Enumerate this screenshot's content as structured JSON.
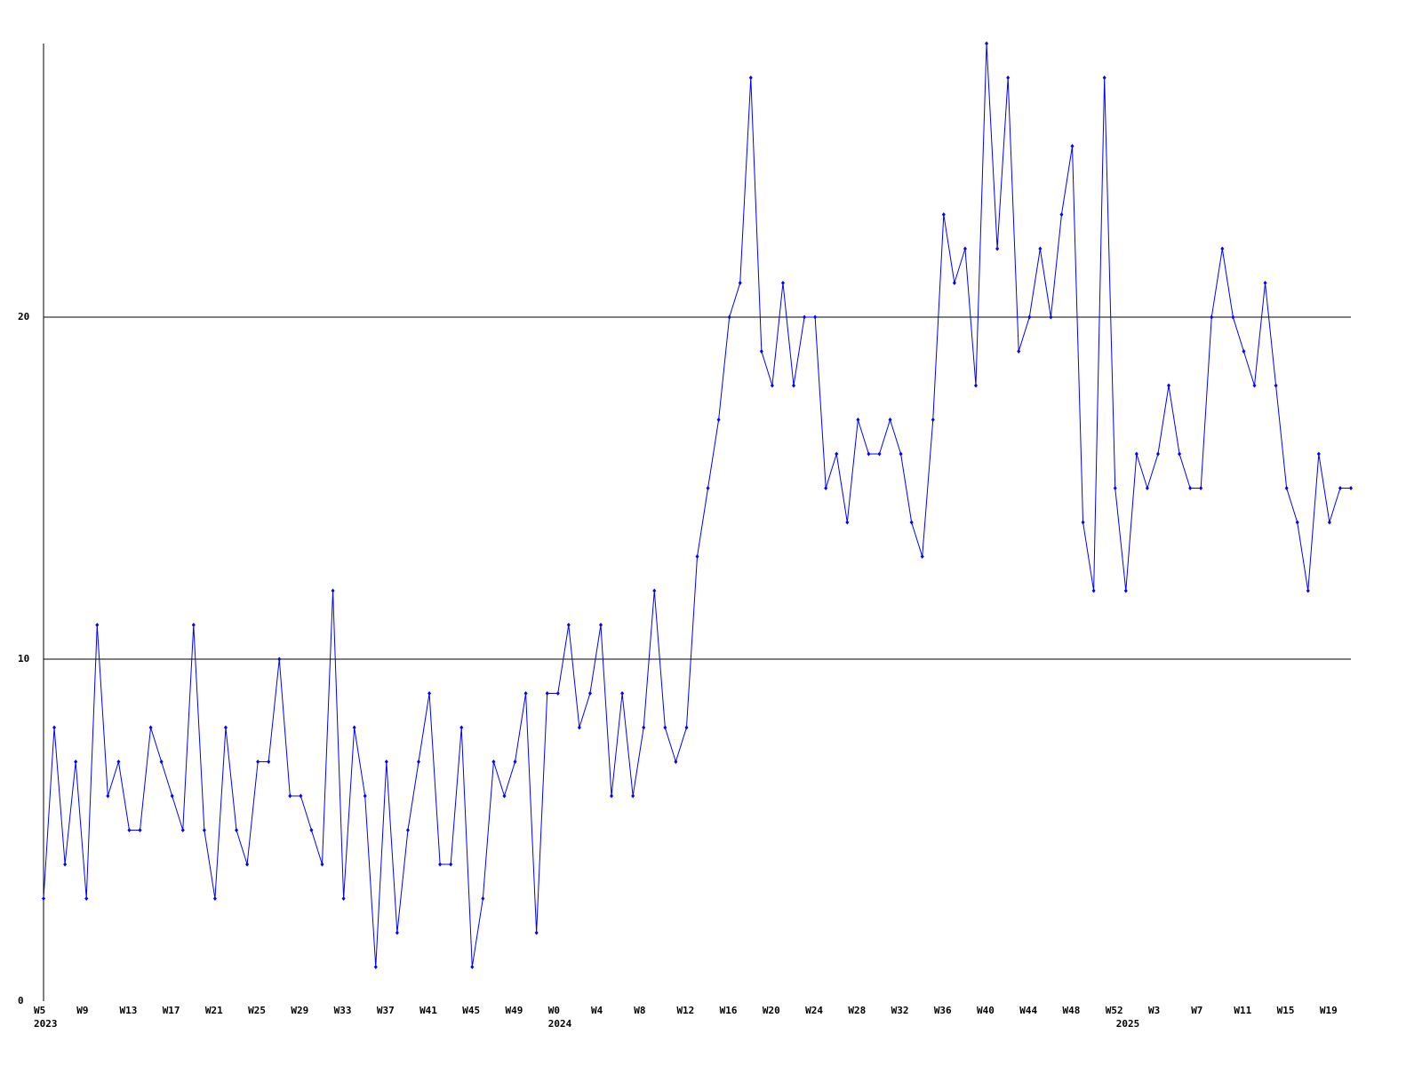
{
  "chart_data": {
    "type": "line",
    "color": "#0000ff",
    "grid": true,
    "categories": [
      "W5",
      null,
      null,
      null,
      "W9",
      null,
      null,
      null,
      "W13",
      null,
      null,
      null,
      "W17",
      null,
      null,
      null,
      "W21",
      null,
      null,
      null,
      "W25",
      null,
      null,
      null,
      "W29",
      null,
      null,
      null,
      "W33",
      null,
      null,
      null,
      "W37",
      null,
      null,
      null,
      "W41",
      null,
      null,
      null,
      "W45",
      null,
      null,
      null,
      "W49",
      null,
      null,
      null,
      "W0",
      null,
      null,
      null,
      "W4",
      null,
      null,
      null,
      "W8",
      null,
      null,
      null,
      "W12",
      null,
      null,
      null,
      "W16",
      null,
      null,
      null,
      "W20",
      null,
      null,
      null,
      "W24",
      null,
      null,
      null,
      "W28",
      null,
      null,
      null,
      "W32",
      null,
      null,
      null,
      "W36",
      null,
      null,
      null,
      "W40",
      null,
      null,
      null,
      "W44",
      null,
      null,
      null,
      "W48",
      null,
      null,
      null,
      "W52",
      null,
      null,
      null,
      "W3",
      null,
      null,
      null,
      "W7",
      null,
      null,
      null,
      "W11",
      null,
      null,
      null,
      "W15",
      null,
      null,
      null,
      "W19",
      null,
      null
    ],
    "x_sublabels": [
      "2023",
      null,
      null,
      null,
      null,
      null,
      null,
      null,
      null,
      null,
      null,
      null,
      null,
      null,
      null,
      null,
      null,
      null,
      null,
      null,
      null,
      null,
      null,
      null,
      null,
      null,
      null,
      null,
      null,
      null,
      null,
      null,
      null,
      null,
      null,
      null,
      null,
      null,
      null,
      null,
      null,
      null,
      null,
      null,
      null,
      null,
      null,
      null,
      "2024",
      null,
      null,
      null,
      null,
      null,
      null,
      null,
      null,
      null,
      null,
      null,
      null,
      null,
      null,
      null,
      null,
      null,
      null,
      null,
      null,
      null,
      null,
      null,
      null,
      null,
      null,
      null,
      null,
      null,
      null,
      null,
      null,
      null,
      null,
      null,
      null,
      null,
      null,
      null,
      null,
      null,
      null,
      null,
      null,
      null,
      null,
      null,
      null,
      null,
      null,
      null,
      null,
      "2025",
      null,
      null,
      null,
      null,
      null,
      null,
      null,
      null,
      null,
      null,
      null,
      null,
      null,
      null,
      null,
      null,
      null,
      null,
      null,
      null
    ],
    "values": [
      3,
      8,
      4,
      7,
      3,
      11,
      6,
      7,
      5,
      5,
      8,
      7,
      6,
      5,
      11,
      5,
      3,
      8,
      5,
      4,
      7,
      7,
      10,
      6,
      6,
      5,
      4,
      12,
      3,
      8,
      6,
      1,
      7,
      2,
      5,
      7,
      9,
      4,
      4,
      8,
      1,
      3,
      7,
      6,
      7,
      9,
      2,
      9,
      9,
      11,
      8,
      9,
      11,
      6,
      9,
      6,
      8,
      12,
      8,
      7,
      8,
      13,
      15,
      17,
      20,
      21,
      27,
      19,
      18,
      21,
      18,
      20,
      20,
      15,
      16,
      14,
      17,
      16,
      16,
      17,
      16,
      14,
      13,
      17,
      23,
      21,
      22,
      18,
      28,
      22,
      27,
      19,
      20,
      22,
      20,
      23,
      25,
      14,
      12,
      27,
      15,
      12,
      16,
      15,
      16,
      18,
      16,
      15,
      15,
      20,
      22,
      20,
      19,
      18,
      21,
      18,
      15,
      14,
      12,
      16,
      14,
      15,
      15
    ],
    "ylim": [
      0,
      28
    ],
    "yticks": [
      0,
      10,
      20
    ]
  }
}
